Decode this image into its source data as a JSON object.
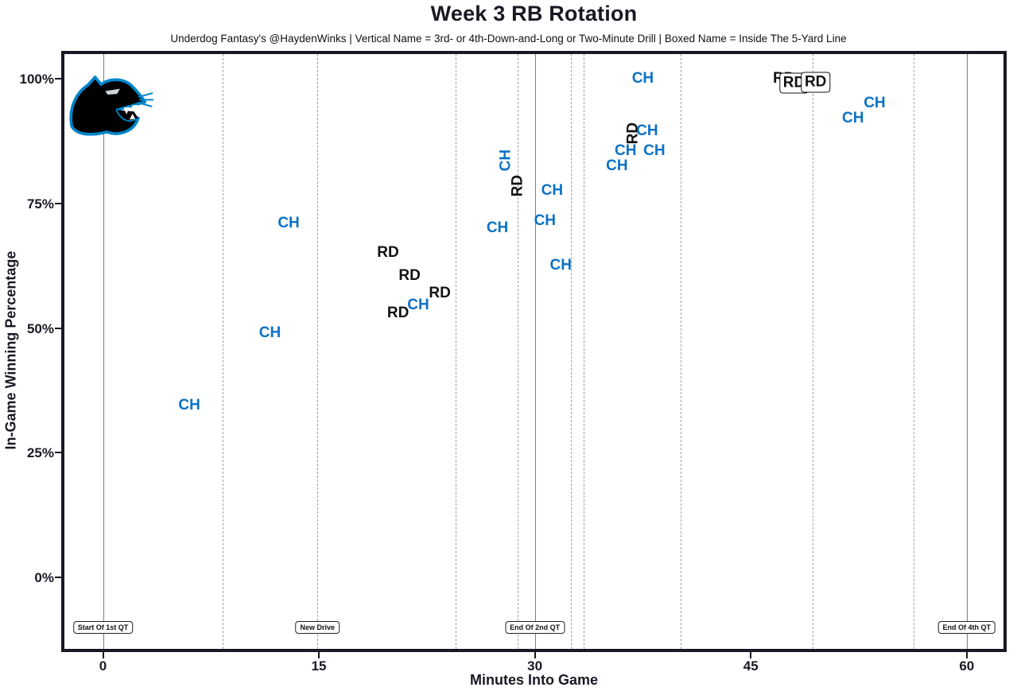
{
  "title": "Week 3 RB Rotation",
  "subtitle": "Underdog Fantasy's @HaydenWinks | Vertical Name = 3rd- or 4th-Down-and-Long or Two-Minute Drill | Boxed Name = Inside The 5-Yard Line",
  "logo": {
    "team": "Carolina Panthers",
    "description": "panther head logo"
  },
  "colors": {
    "ch_blue": "#0b72c6",
    "rd_black": "#111111",
    "axis_dark": "#191924",
    "solid_gridline": "#7d7d7d",
    "dashed_gridline": "#a2a2a2",
    "panthers_blue": "#0085CA"
  },
  "chart_data": {
    "type": "scatter",
    "title": "Week 3 RB Rotation",
    "xlabel": "Minutes Into Game",
    "ylabel": "In-Game Winning Percentage",
    "x_ticks": [
      0,
      15,
      30,
      45,
      60
    ],
    "y_ticks": [
      100,
      75,
      50,
      25,
      0
    ],
    "y_tick_suffix": "%",
    "xlim": [
      -2.9,
      62.8
    ],
    "ylim": [
      -15,
      106
    ],
    "legend": "none",
    "grid": "vertical event lines only",
    "point_styles": {
      "plain": "normal horizontal name",
      "vertical": "3rd- or 4th-Down-and-Long or Two-Minute Drill",
      "boxed": "Inside The 5-Yard Line"
    },
    "series": [
      {
        "name": "CH",
        "color": "#0b72c6",
        "points": [
          {
            "min": 6.0,
            "pct": 34.5,
            "style": "plain"
          },
          {
            "min": 11.6,
            "pct": 49.0,
            "style": "plain"
          },
          {
            "min": 12.9,
            "pct": 71.0,
            "style": "plain"
          },
          {
            "min": 21.9,
            "pct": 54.5,
            "style": "plain"
          },
          {
            "min": 27.4,
            "pct": 70.0,
            "style": "plain"
          },
          {
            "min": 28.0,
            "pct": 83.5,
            "style": "vertical"
          },
          {
            "min": 30.7,
            "pct": 71.5,
            "style": "plain"
          },
          {
            "min": 31.2,
            "pct": 77.5,
            "style": "plain"
          },
          {
            "min": 31.8,
            "pct": 62.5,
            "style": "plain"
          },
          {
            "min": 35.7,
            "pct": 82.5,
            "style": "plain"
          },
          {
            "min": 36.3,
            "pct": 85.5,
            "style": "plain"
          },
          {
            "min": 38.3,
            "pct": 85.5,
            "style": "plain"
          },
          {
            "min": 37.8,
            "pct": 89.5,
            "style": "plain"
          },
          {
            "min": 37.5,
            "pct": 100.0,
            "style": "plain"
          },
          {
            "min": 52.1,
            "pct": 92.0,
            "style": "plain"
          },
          {
            "min": 53.6,
            "pct": 95.0,
            "style": "plain"
          }
        ]
      },
      {
        "name": "RD",
        "color": "#111111",
        "points": [
          {
            "min": 19.8,
            "pct": 65.0,
            "style": "plain"
          },
          {
            "min": 20.5,
            "pct": 53.0,
            "style": "plain"
          },
          {
            "min": 21.3,
            "pct": 60.5,
            "style": "plain"
          },
          {
            "min": 23.4,
            "pct": 57.0,
            "style": "plain"
          },
          {
            "min": 28.8,
            "pct": 78.5,
            "style": "vertical"
          },
          {
            "min": 36.8,
            "pct": 89.0,
            "style": "vertical"
          },
          {
            "min": 47.3,
            "pct": 100.0,
            "style": "plain"
          },
          {
            "min": 48.0,
            "pct": 99.0,
            "style": "boxed"
          },
          {
            "min": 49.5,
            "pct": 99.2,
            "style": "boxed"
          }
        ]
      }
    ],
    "event_lines": {
      "solid_minutes": [
        0,
        30,
        60
      ],
      "dashed_minutes": [
        8.3,
        14.9,
        24.5,
        28.8,
        32.5,
        33.4,
        40.1,
        49.3,
        56.3
      ]
    },
    "annotations": [
      {
        "label": "Start Of 1st QT",
        "min": 0
      },
      {
        "label": "New Drive",
        "min": 14.9
      },
      {
        "label": "End Of 2nd QT",
        "min": 30
      },
      {
        "label": "End Of 4th QT",
        "min": 60
      }
    ]
  }
}
